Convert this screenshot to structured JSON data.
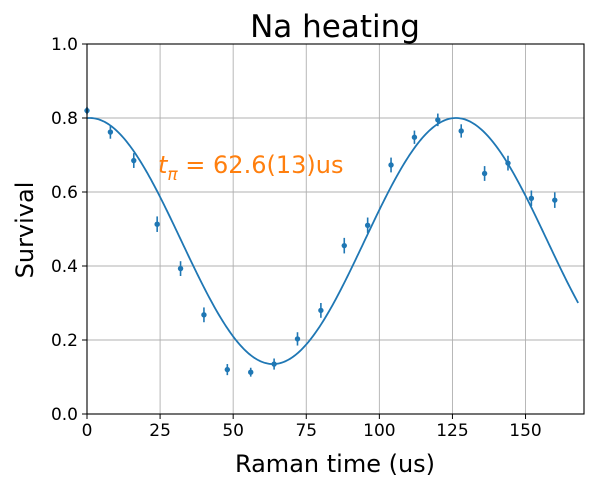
{
  "chart_data": {
    "type": "scatter",
    "title": "Na heating",
    "xlabel": "Raman time (us)",
    "ylabel": "Survival",
    "xlim": [
      0,
      170
    ],
    "ylim": [
      0,
      1.0
    ],
    "x_ticks": [
      0,
      25,
      50,
      75,
      100,
      125,
      150
    ],
    "x_tick_labels": [
      "0",
      "25",
      "50",
      "75",
      "100",
      "125",
      "150"
    ],
    "y_ticks": [
      0,
      0.2,
      0.4,
      0.6,
      0.8,
      1.0
    ],
    "y_tick_labels": [
      "0.0",
      "0.2",
      "0.4",
      "0.6",
      "0.8",
      "1.0"
    ],
    "grid": true,
    "series_color": "#1f77b4",
    "annotation": {
      "symbol": "t",
      "subscript": "π",
      "text": " = 62.6(13)us",
      "color": "#ff7f0e"
    },
    "data_points": [
      {
        "x": 0,
        "y": 0.82,
        "err": 0.01
      },
      {
        "x": 8,
        "y": 0.762,
        "err": 0.018
      },
      {
        "x": 16,
        "y": 0.685,
        "err": 0.02
      },
      {
        "x": 24,
        "y": 0.513,
        "err": 0.021
      },
      {
        "x": 32,
        "y": 0.393,
        "err": 0.02
      },
      {
        "x": 40,
        "y": 0.268,
        "err": 0.02
      },
      {
        "x": 48,
        "y": 0.12,
        "err": 0.015
      },
      {
        "x": 56,
        "y": 0.113,
        "err": 0.012
      },
      {
        "x": 64,
        "y": 0.135,
        "err": 0.015
      },
      {
        "x": 72,
        "y": 0.203,
        "err": 0.018
      },
      {
        "x": 80,
        "y": 0.28,
        "err": 0.02
      },
      {
        "x": 88,
        "y": 0.455,
        "err": 0.021
      },
      {
        "x": 96,
        "y": 0.51,
        "err": 0.021
      },
      {
        "x": 104,
        "y": 0.673,
        "err": 0.02
      },
      {
        "x": 112,
        "y": 0.748,
        "err": 0.018
      },
      {
        "x": 120,
        "y": 0.795,
        "err": 0.017
      },
      {
        "x": 128,
        "y": 0.765,
        "err": 0.018
      },
      {
        "x": 136,
        "y": 0.65,
        "err": 0.02
      },
      {
        "x": 144,
        "y": 0.678,
        "err": 0.02
      },
      {
        "x": 152,
        "y": 0.583,
        "err": 0.021
      },
      {
        "x": 160,
        "y": 0.578,
        "err": 0.021
      }
    ],
    "fit": {
      "type": "cosine",
      "offset": 0.4675,
      "amplitude": 0.3325,
      "period": 125.2,
      "phase_center": 1.0,
      "x_range": [
        0,
        168
      ]
    }
  }
}
